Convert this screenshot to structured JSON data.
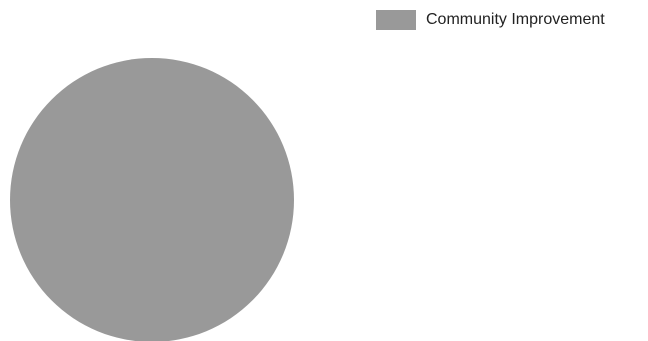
{
  "chart_data": {
    "type": "pie",
    "title": "",
    "legend_position": "top-right",
    "slices": [
      {
        "label": "Community Improvement",
        "value": 100,
        "color": "#999999"
      }
    ]
  }
}
